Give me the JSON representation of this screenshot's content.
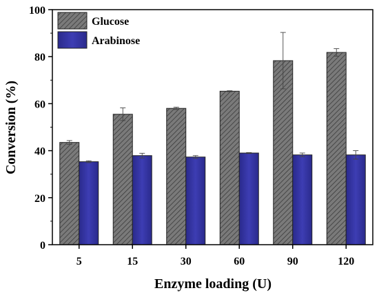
{
  "chart_data": {
    "type": "bar",
    "categories": [
      "5",
      "15",
      "30",
      "60",
      "90",
      "120"
    ],
    "series": [
      {
        "name": "Glucose",
        "values": [
          43.5,
          55.5,
          58.0,
          65.3,
          78.3,
          81.8
        ],
        "errors": [
          0.8,
          2.7,
          0.5,
          0.2,
          12.0,
          1.6
        ],
        "color": "#6e6e6e",
        "pattern": "hatched"
      },
      {
        "name": "Arabinose",
        "values": [
          35.3,
          37.9,
          37.3,
          39.0,
          38.2,
          38.2
        ],
        "errors": [
          0.4,
          1.0,
          0.6,
          0.2,
          0.8,
          1.8
        ],
        "color": "#3333a3",
        "pattern": "solid"
      }
    ],
    "xlabel": "Enzyme loading (U)",
    "ylabel": "Conversion (%)",
    "ylim": [
      0,
      100
    ],
    "yticks": [
      0,
      20,
      40,
      60,
      80,
      100
    ],
    "grid": false,
    "legend_position": "top-left"
  }
}
